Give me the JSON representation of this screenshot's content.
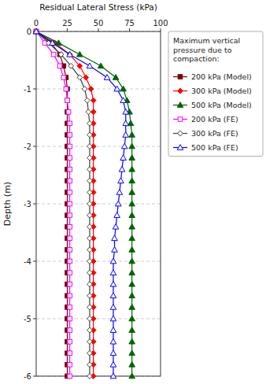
{
  "chart_data": {
    "type": "line",
    "xlabel": "Residual Lateral Stress (kPa)",
    "ylabel": "Depth (m)",
    "xlim": [
      0,
      100
    ],
    "ylim": [
      -6,
      0
    ],
    "xticks": [
      0,
      25,
      50,
      75,
      100
    ],
    "yticks": [
      0,
      -1,
      -2,
      -3,
      -4,
      -5,
      -6
    ],
    "grid": true,
    "legend": "right",
    "legend_title": "Maximum vertical\npressure due to\ncompaction:",
    "series": [
      {
        "name": "200 kPa (Model)",
        "color": "#7B0000",
        "marker": "square",
        "line_style": "solid",
        "x": [
          0,
          12,
          19,
          22,
          24,
          25,
          25,
          25,
          25,
          25,
          25,
          25,
          25,
          25,
          25,
          25,
          25,
          25,
          25,
          25,
          25,
          25,
          25,
          25,
          25,
          25,
          25,
          25,
          25,
          25,
          25
        ],
        "values": [
          0,
          -0.2,
          -0.4,
          -0.6,
          -0.8,
          -1.0,
          -1.2,
          -1.4,
          -1.6,
          -1.8,
          -2.0,
          -2.2,
          -2.4,
          -2.6,
          -2.8,
          -3.0,
          -3.2,
          -3.4,
          -3.6,
          -3.8,
          -4.0,
          -4.2,
          -4.4,
          -4.6,
          -4.8,
          -5.0,
          -5.2,
          -5.4,
          -5.6,
          -5.8,
          -6.0
        ]
      },
      {
        "name": "300 kPa (Model)",
        "color": "#FF0000",
        "marker": "diamond",
        "line_style": "solid",
        "x": [
          0,
          15,
          27,
          35,
          40,
          44,
          46,
          46,
          46,
          46,
          46,
          46,
          46,
          46,
          46,
          46,
          46,
          46,
          46,
          46,
          46,
          46,
          46,
          46,
          46,
          46,
          46,
          46,
          46,
          46,
          46
        ],
        "values": [
          0,
          -0.2,
          -0.4,
          -0.6,
          -0.8,
          -1.0,
          -1.2,
          -1.4,
          -1.6,
          -1.8,
          -2.0,
          -2.2,
          -2.4,
          -2.6,
          -2.8,
          -3.0,
          -3.2,
          -3.4,
          -3.6,
          -3.8,
          -4.0,
          -4.2,
          -4.4,
          -4.6,
          -4.8,
          -5.0,
          -5.2,
          -5.4,
          -5.6,
          -5.8,
          -6.0
        ]
      },
      {
        "name": "500 kPa (Model)",
        "color": "#006400",
        "marker": "triangle",
        "line_style": "solid",
        "x": [
          0,
          18,
          35,
          52,
          64,
          70,
          73,
          75,
          76,
          77,
          77,
          77,
          77,
          77,
          77,
          77,
          77,
          77,
          77,
          77,
          77,
          77,
          77,
          77,
          77,
          77,
          77,
          77,
          77,
          77,
          77
        ],
        "values": [
          0,
          -0.2,
          -0.4,
          -0.6,
          -0.8,
          -1.0,
          -1.2,
          -1.4,
          -1.6,
          -1.8,
          -2.0,
          -2.2,
          -2.4,
          -2.6,
          -2.8,
          -3.0,
          -3.2,
          -3.4,
          -3.6,
          -3.8,
          -4.0,
          -4.2,
          -4.4,
          -4.6,
          -4.8,
          -5.0,
          -5.2,
          -5.4,
          -5.6,
          -5.8,
          -6.0
        ]
      },
      {
        "name": "200 kPa (FE)",
        "color": "#FF00FF",
        "marker": "square-open",
        "line_style": "solid",
        "x": [
          0,
          7,
          14,
          19,
          22,
          24,
          25,
          26,
          27,
          27,
          27,
          27,
          27,
          27,
          27,
          27,
          27,
          27,
          27,
          27,
          27,
          27,
          27,
          27,
          27,
          27,
          27,
          27,
          27,
          27,
          27
        ],
        "values": [
          0,
          -0.2,
          -0.4,
          -0.6,
          -0.8,
          -1.0,
          -1.2,
          -1.4,
          -1.6,
          -1.8,
          -2.0,
          -2.2,
          -2.4,
          -2.6,
          -2.8,
          -3.0,
          -3.2,
          -3.4,
          -3.6,
          -3.8,
          -4.0,
          -4.2,
          -4.4,
          -4.6,
          -4.8,
          -5.0,
          -5.2,
          -5.4,
          -5.6,
          -5.8,
          -6.0
        ]
      },
      {
        "name": "300 kPa (FE)",
        "color": "#404040",
        "marker": "diamond-open",
        "line_style": "solid",
        "x": [
          0,
          10,
          20,
          28,
          35,
          39,
          41,
          42,
          43,
          43,
          43,
          43,
          43,
          43,
          43,
          43,
          43,
          43,
          43,
          43,
          43,
          43,
          43,
          43,
          43,
          43,
          43,
          43,
          43,
          43,
          43
        ],
        "values": [
          0,
          -0.2,
          -0.4,
          -0.6,
          -0.8,
          -1.0,
          -1.2,
          -1.4,
          -1.6,
          -1.8,
          -2.0,
          -2.2,
          -2.4,
          -2.6,
          -2.8,
          -3.0,
          -3.2,
          -3.4,
          -3.6,
          -3.8,
          -4.0,
          -4.2,
          -4.4,
          -4.6,
          -4.8,
          -5.0,
          -5.2,
          -5.4,
          -5.6,
          -5.8,
          -6.0
        ]
      },
      {
        "name": "500 kPa (FE)",
        "color": "#0000FF",
        "marker": "triangle-open",
        "line_style": "solid",
        "x": [
          0,
          13,
          27,
          43,
          57,
          65,
          70,
          72,
          72,
          72,
          71,
          70,
          69,
          68,
          67,
          66,
          65,
          64,
          63,
          63,
          62,
          62,
          62,
          62,
          62,
          62,
          62,
          62,
          62,
          62,
          62
        ],
        "values": [
          0,
          -0.2,
          -0.4,
          -0.6,
          -0.8,
          -1.0,
          -1.2,
          -1.4,
          -1.6,
          -1.8,
          -2.0,
          -2.2,
          -2.4,
          -2.6,
          -2.8,
          -3.0,
          -3.2,
          -3.4,
          -3.6,
          -3.8,
          -4.0,
          -4.2,
          -4.4,
          -4.6,
          -4.8,
          -5.0,
          -5.2,
          -5.4,
          -5.6,
          -5.8,
          -6.0
        ]
      }
    ]
  }
}
